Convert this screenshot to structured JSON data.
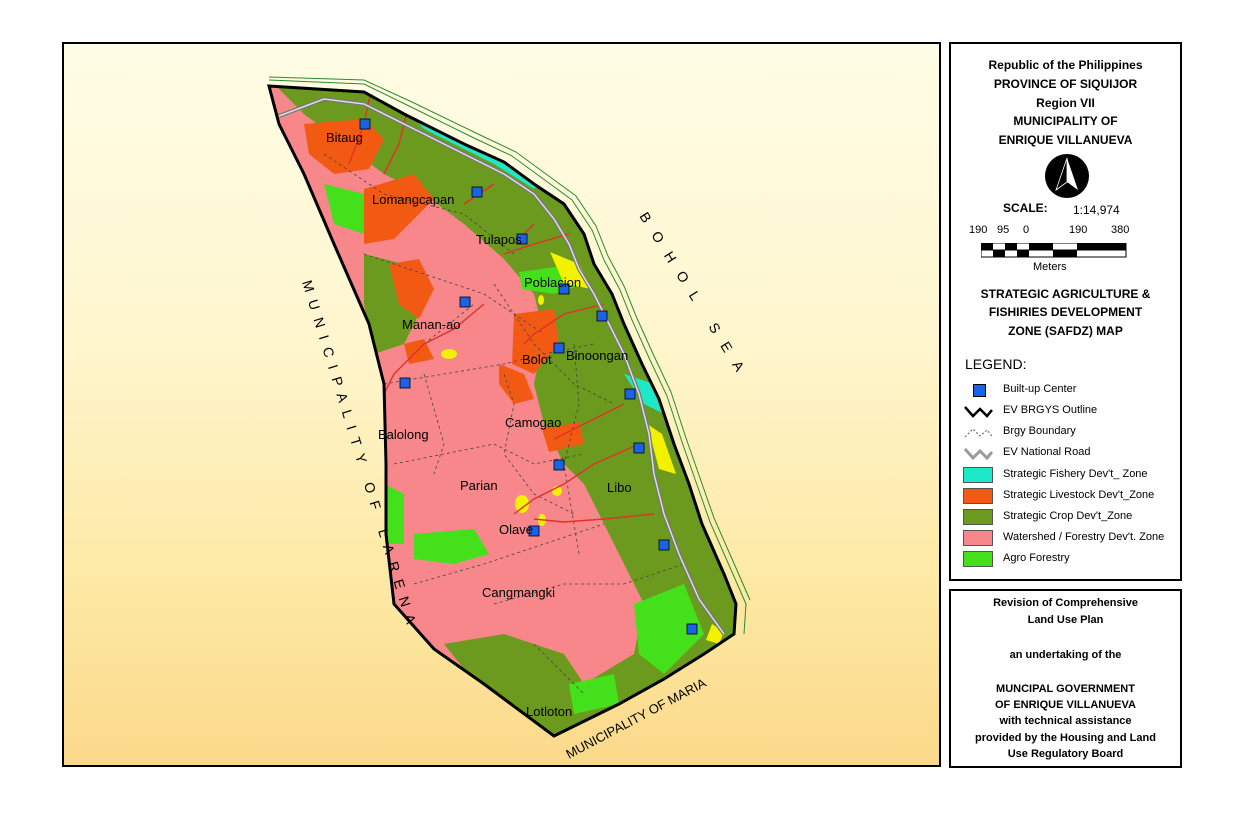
{
  "map": {
    "sea_label": "BOHOL SEA",
    "west_label": "MUNICIPALITY OF LARENA",
    "south_label": "MUNICIPALITY OF MARIA",
    "barangays": [
      "Bitaug",
      "Lomangcapan",
      "Tulapos",
      "Poblacion",
      "Manan-ao",
      "Bolot",
      "Binoongan",
      "Balolong",
      "Camogao",
      "Parian",
      "Libo",
      "Olave",
      "Cangmangki",
      "Lotloton"
    ]
  },
  "title_block": {
    "lines": [
      "Republic of the Philippines",
      "PROVINCE OF SIQUIJOR",
      "Region VII",
      "MUNICIPALITY OF",
      "ENRIQUE VILLANUEVA"
    ],
    "north_icon": "north-arrow-icon",
    "scale_label": "SCALE:",
    "scale_value": "1:14,974",
    "scale_ticks": [
      "190",
      "95",
      "0",
      "190",
      "380"
    ],
    "scale_unit": "Meters",
    "map_title_lines": [
      "STRATEGIC AGRICULTURE &",
      "FISHIRIES DEVELOPMENT",
      "ZONE (SAFDZ) MAP"
    ]
  },
  "legend": {
    "title": "LEGEND:",
    "items": [
      {
        "label": "Built-up Center",
        "color": "#1a62e6"
      },
      {
        "label": "EV BRGYS Outline",
        "color": "#000000"
      },
      {
        "label": "Brgy Boundary",
        "color": "#555555"
      },
      {
        "label": "EV National Road",
        "color": "#9a9a9a"
      },
      {
        "label": "Strategic Fishery Dev't_ Zone",
        "color": "#1de8c8"
      },
      {
        "label": "Strategic Livestock Dev't_Zone",
        "color": "#f25a14"
      },
      {
        "label": "Strategic Crop Dev't_Zone",
        "color": "#6b9a1e"
      },
      {
        "label": "Watershed / Forestry Dev't. Zone",
        "color": "#f7878a"
      },
      {
        "label": "Agro Forestry",
        "color": "#44e01c"
      }
    ]
  },
  "credits": {
    "lines": [
      "Revision of Comprehensive",
      "Land Use Plan",
      "an undertaking of the",
      "MUNCIPAL GOVERNMENT",
      "OF ENRIQUE VILLANUEVA",
      "with technical assistance",
      "provided by the Housing and Land",
      "Use Regulatory Board"
    ]
  }
}
